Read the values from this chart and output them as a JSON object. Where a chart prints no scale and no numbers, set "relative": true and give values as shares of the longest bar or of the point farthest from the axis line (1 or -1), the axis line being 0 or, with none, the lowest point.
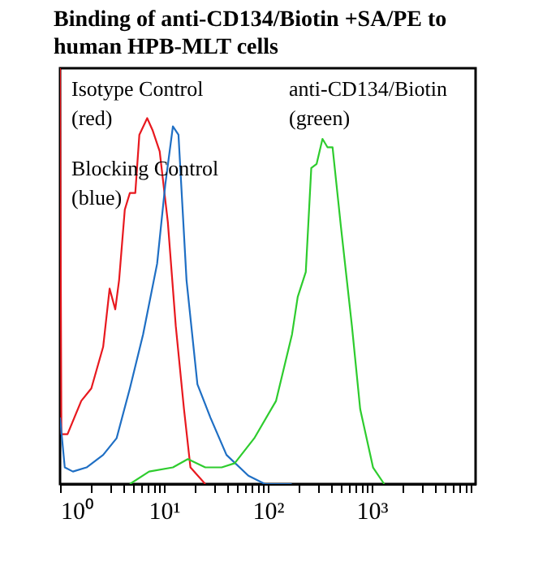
{
  "chart_data": {
    "type": "line",
    "title": "Binding of anti-CD134/Biotin +SA/PE to human HPB-MLT cells",
    "relative": true,
    "log": "x",
    "grid": false,
    "line_style": "solid",
    "marker": "none",
    "xlim": [
      1,
      10000
    ],
    "xticks": [
      {
        "value": 1,
        "label": "10⁰"
      },
      {
        "value": 2,
        "label": null
      },
      {
        "value": 3,
        "label": null
      },
      {
        "value": 4,
        "label": null
      },
      {
        "value": 5,
        "label": null
      },
      {
        "value": 6,
        "label": null
      },
      {
        "value": 7,
        "label": null
      },
      {
        "value": 8,
        "label": null
      },
      {
        "value": 9,
        "label": null
      },
      {
        "value": 10,
        "label": "10¹"
      },
      {
        "value": 20,
        "label": null
      },
      {
        "value": 30,
        "label": null
      },
      {
        "value": 40,
        "label": null
      },
      {
        "value": 50,
        "label": null
      },
      {
        "value": 60,
        "label": null
      },
      {
        "value": 70,
        "label": null
      },
      {
        "value": 80,
        "label": null
      },
      {
        "value": 90,
        "label": null
      },
      {
        "value": 100,
        "label": "10²"
      },
      {
        "value": 200,
        "label": null
      },
      {
        "value": 300,
        "label": null
      },
      {
        "value": 400,
        "label": null
      },
      {
        "value": 500,
        "label": null
      },
      {
        "value": 600,
        "label": null
      },
      {
        "value": 700,
        "label": null
      },
      {
        "value": 800,
        "label": null
      },
      {
        "value": 900,
        "label": null
      },
      {
        "value": 1000,
        "label": "10³"
      },
      {
        "value": 2000,
        "label": null
      },
      {
        "value": 3000,
        "label": null
      },
      {
        "value": 4000,
        "label": null
      },
      {
        "value": 5000,
        "label": null
      },
      {
        "value": 6000,
        "label": null
      },
      {
        "value": 7000,
        "label": null
      },
      {
        "value": 8000,
        "label": null
      },
      {
        "value": 9000,
        "label": null
      }
    ],
    "annotations": [
      "Isotype Control\n(red)",
      "Blocking Control\n(blue)",
      "anti-CD134/Biotin\n(green)"
    ],
    "series": [
      {
        "color": "#e8191f",
        "x": [
          1.0,
          1.03,
          1.18,
          1.6,
          2.0,
          2.6,
          3.0,
          3.4,
          3.7,
          4.2,
          4.7,
          5.3,
          5.8,
          6.9,
          7.8,
          9.1,
          10.9,
          13,
          15.6,
          18,
          25
        ],
        "values": [
          1.0,
          0.12,
          0.12,
          0.2,
          0.23,
          0.33,
          0.47,
          0.42,
          0.49,
          0.66,
          0.7,
          0.7,
          0.84,
          0.88,
          0.85,
          0.8,
          0.63,
          0.38,
          0.18,
          0.04,
          0.0
        ]
      },
      {
        "color": "#1f6fc4",
        "x": [
          1.0,
          1.11,
          1.33,
          1.8,
          2.6,
          3.5,
          4.7,
          6.3,
          8.6,
          10.3,
          12.2,
          13.8,
          16.5,
          21,
          28,
          40,
          65,
          94,
          170
        ],
        "values": [
          0.16,
          0.04,
          0.03,
          0.04,
          0.07,
          0.11,
          0.23,
          0.36,
          0.53,
          0.72,
          0.86,
          0.84,
          0.49,
          0.24,
          0.16,
          0.07,
          0.02,
          0.0,
          0.0
        ]
      },
      {
        "color": "#2ecc2e",
        "x": [
          4.7,
          7.2,
          12.2,
          17,
          25,
          36,
          48,
          74,
          120,
          171,
          194,
          232,
          262,
          295,
          336,
          375,
          420,
          505,
          645,
          775,
          1030,
          1320
        ],
        "values": [
          0.0,
          0.03,
          0.04,
          0.06,
          0.04,
          0.04,
          0.05,
          0.11,
          0.2,
          0.36,
          0.45,
          0.51,
          0.76,
          0.77,
          0.83,
          0.81,
          0.81,
          0.62,
          0.38,
          0.18,
          0.04,
          0.0
        ]
      }
    ]
  }
}
